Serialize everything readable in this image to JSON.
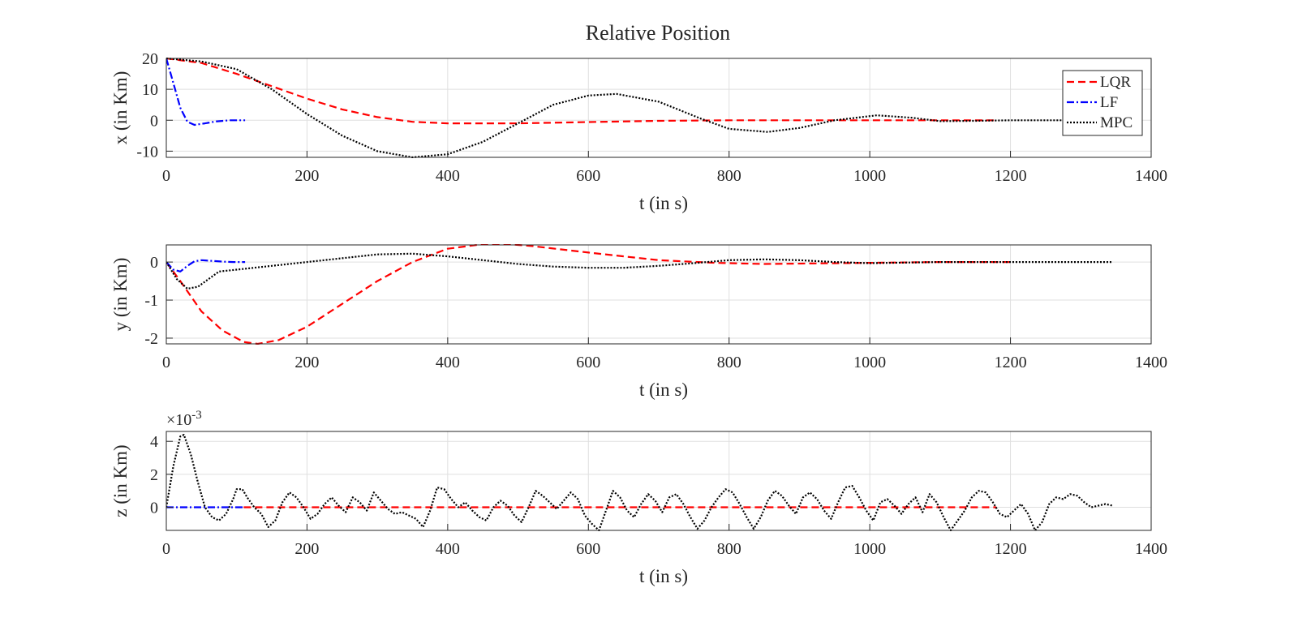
{
  "title": "Relative Position",
  "series_meta": [
    {
      "name": "LQR",
      "color": "#ff0000",
      "dash": "9,5"
    },
    {
      "name": "LF",
      "color": "#0000ff",
      "dash": "9,3,2,3"
    },
    {
      "name": "MPC",
      "color": "#000000",
      "dash": "2,2"
    }
  ],
  "chart_data": [
    {
      "type": "line",
      "xlabel": "t (in s)",
      "ylabel": "x (in Km)",
      "xlim": [
        0,
        1400
      ],
      "ylim": [
        -12,
        20
      ],
      "xticks": [
        0,
        200,
        400,
        600,
        800,
        1000,
        1200,
        1400
      ],
      "yticks": [
        -10,
        0,
        10,
        20
      ],
      "grid": true,
      "legend": "top-right",
      "series": [
        {
          "name": "LQR",
          "x": [
            0,
            50,
            100,
            150,
            200,
            250,
            300,
            350,
            400,
            500,
            600,
            700,
            800,
            900,
            1000,
            1100,
            1180
          ],
          "y": [
            20,
            18.5,
            15,
            11,
            7,
            3.5,
            1,
            -0.5,
            -1,
            -1,
            -0.6,
            -0.2,
            0,
            0,
            0,
            0,
            0
          ]
        },
        {
          "name": "LF",
          "x": [
            0,
            10,
            20,
            30,
            40,
            55,
            70,
            90,
            112
          ],
          "y": [
            20,
            12,
            4,
            -0.5,
            -1.5,
            -1,
            -0.4,
            0,
            0
          ]
        },
        {
          "name": "MPC",
          "x": [
            0,
            50,
            100,
            150,
            200,
            250,
            300,
            350,
            400,
            450,
            500,
            550,
            600,
            640,
            700,
            760,
            800,
            855,
            900,
            950,
            1010,
            1060,
            1100,
            1150,
            1200,
            1270,
            1340
          ],
          "y": [
            20,
            19,
            16.5,
            10,
            2,
            -5,
            -10,
            -12,
            -11,
            -7,
            -1,
            5,
            8,
            8.5,
            6,
            0.5,
            -2.8,
            -3.8,
            -2.5,
            0,
            1.6,
            0.8,
            -0.3,
            -0.2,
            0,
            0,
            0
          ]
        }
      ]
    },
    {
      "type": "line",
      "xlabel": "t (in s)",
      "ylabel": "y (in Km)",
      "xlim": [
        0,
        1400
      ],
      "ylim": [
        -2.15,
        0.45
      ],
      "xticks": [
        0,
        200,
        400,
        600,
        800,
        1000,
        1200,
        1400
      ],
      "yticks": [
        -2,
        -1,
        0
      ],
      "grid": true,
      "series": [
        {
          "name": "LQR",
          "x": [
            0,
            20,
            50,
            80,
            110,
            130,
            160,
            200,
            250,
            300,
            350,
            400,
            450,
            480,
            520,
            600,
            700,
            780,
            850,
            1000,
            1100,
            1200
          ],
          "y": [
            0,
            -0.5,
            -1.3,
            -1.8,
            -2.1,
            -2.15,
            -2.05,
            -1.7,
            -1.1,
            -0.5,
            0,
            0.35,
            0.47,
            0.48,
            0.42,
            0.25,
            0.05,
            -0.02,
            -0.05,
            -0.02,
            0,
            0
          ]
        },
        {
          "name": "LF",
          "x": [
            0,
            10,
            20,
            30,
            40,
            50,
            65,
            80,
            95,
            112
          ],
          "y": [
            0,
            -0.2,
            -0.25,
            -0.1,
            0.02,
            0.05,
            0.03,
            0.01,
            0,
            0
          ]
        },
        {
          "name": "MPC",
          "x": [
            0,
            15,
            30,
            45,
            60,
            75,
            100,
            150,
            200,
            250,
            300,
            350,
            400,
            450,
            500,
            550,
            600,
            650,
            700,
            750,
            800,
            850,
            900,
            950,
            1000,
            1100,
            1200,
            1345
          ],
          "y": [
            0,
            -0.45,
            -0.7,
            -0.65,
            -0.45,
            -0.25,
            -0.2,
            -0.1,
            0,
            0.1,
            0.2,
            0.22,
            0.15,
            0.05,
            -0.05,
            -0.12,
            -0.15,
            -0.15,
            -0.1,
            -0.03,
            0.05,
            0.07,
            0.05,
            0,
            -0.03,
            0,
            0,
            0
          ]
        }
      ]
    },
    {
      "type": "line",
      "xlabel": "t (in s)",
      "ylabel": "z (in Km)",
      "axis_multiplier": "×10",
      "axis_multiplier_exponent": "-3",
      "xlim": [
        0,
        1400
      ],
      "ylim": [
        -1.4,
        4.6
      ],
      "xticks": [
        0,
        200,
        400,
        600,
        800,
        1000,
        1200,
        1400
      ],
      "yticks": [
        0,
        2,
        4
      ],
      "grid": true,
      "series": [
        {
          "name": "LQR",
          "x": [
            110,
            1180
          ],
          "y": [
            0,
            0
          ]
        },
        {
          "name": "LF",
          "x": [
            0,
            112
          ],
          "y": [
            0,
            0
          ]
        },
        {
          "name": "MPC",
          "x": [
            0,
            10,
            20,
            25,
            35,
            45,
            55,
            65,
            75,
            85,
            95,
            100,
            108,
            115,
            125,
            135,
            145,
            155,
            165,
            175,
            185,
            195,
            205,
            215,
            225,
            235,
            245,
            255,
            265,
            275,
            285,
            295,
            305,
            315,
            325,
            335,
            345,
            355,
            365,
            375,
            385,
            395,
            405,
            415,
            425,
            435,
            445,
            455,
            465,
            475,
            485,
            495,
            505,
            515,
            525,
            535,
            545,
            555,
            565,
            575,
            585,
            595,
            605,
            615,
            625,
            635,
            645,
            655,
            665,
            675,
            685,
            695,
            705,
            715,
            725,
            735,
            745,
            755,
            765,
            775,
            785,
            795,
            805,
            815,
            825,
            835,
            845,
            855,
            865,
            875,
            885,
            895,
            905,
            915,
            925,
            935,
            945,
            955,
            965,
            975,
            985,
            995,
            1005,
            1015,
            1025,
            1035,
            1045,
            1055,
            1065,
            1075,
            1085,
            1095,
            1105,
            1115,
            1125,
            1135,
            1145,
            1155,
            1165,
            1175,
            1185,
            1195,
            1205,
            1215,
            1225,
            1235,
            1245,
            1255,
            1265,
            1275,
            1285,
            1295,
            1305,
            1315,
            1325,
            1335,
            1345
          ],
          "y": [
            0,
            2.5,
            4.3,
            4.4,
            3.2,
            1.5,
            0,
            -0.6,
            -0.8,
            -0.4,
            0.5,
            1.1,
            1.1,
            0.6,
            0,
            -0.4,
            -1.2,
            -0.8,
            0.3,
            0.9,
            0.6,
            0,
            -0.7,
            -0.4,
            0.2,
            0.6,
            0.1,
            -0.3,
            0.6,
            0.3,
            -0.2,
            0.9,
            0.4,
            -0.1,
            -0.4,
            -0.3,
            -0.5,
            -0.7,
            -1.2,
            -0.2,
            1.2,
            1.1,
            0.5,
            0,
            0.3,
            -0.2,
            -0.6,
            -0.8,
            0,
            0.4,
            0.1,
            -0.5,
            -0.9,
            0,
            1,
            0.7,
            0.3,
            -0.1,
            0.4,
            0.9,
            0.5,
            -0.5,
            -1.0,
            -1.4,
            -0.2,
            1,
            0.6,
            -0.2,
            -0.6,
            0.2,
            0.8,
            0.4,
            -0.3,
            0.6,
            0.8,
            0.2,
            -0.6,
            -1.3,
            -0.8,
            0,
            0.6,
            1.1,
            0.9,
            0.2,
            -0.6,
            -1.3,
            -0.6,
            0.4,
            1.0,
            0.7,
            0.1,
            -0.4,
            0.6,
            0.9,
            0.5,
            -0.2,
            -0.7,
            0.3,
            1.2,
            1.3,
            0.6,
            -0.2,
            -0.8,
            0.3,
            0.5,
            0.1,
            -0.4,
            0.2,
            0.6,
            -0.3,
            0.8,
            0.3,
            -0.6,
            -1.4,
            -0.8,
            -0.2,
            0.6,
            1.0,
            0.9,
            0.3,
            -0.4,
            -0.6,
            -0.2,
            0.2,
            -0.4,
            -1.4,
            -0.9,
            0.2,
            0.6,
            0.5,
            0.8,
            0.7,
            0.3,
            0,
            0.1,
            0.2,
            0.1
          ]
        }
      ]
    }
  ]
}
